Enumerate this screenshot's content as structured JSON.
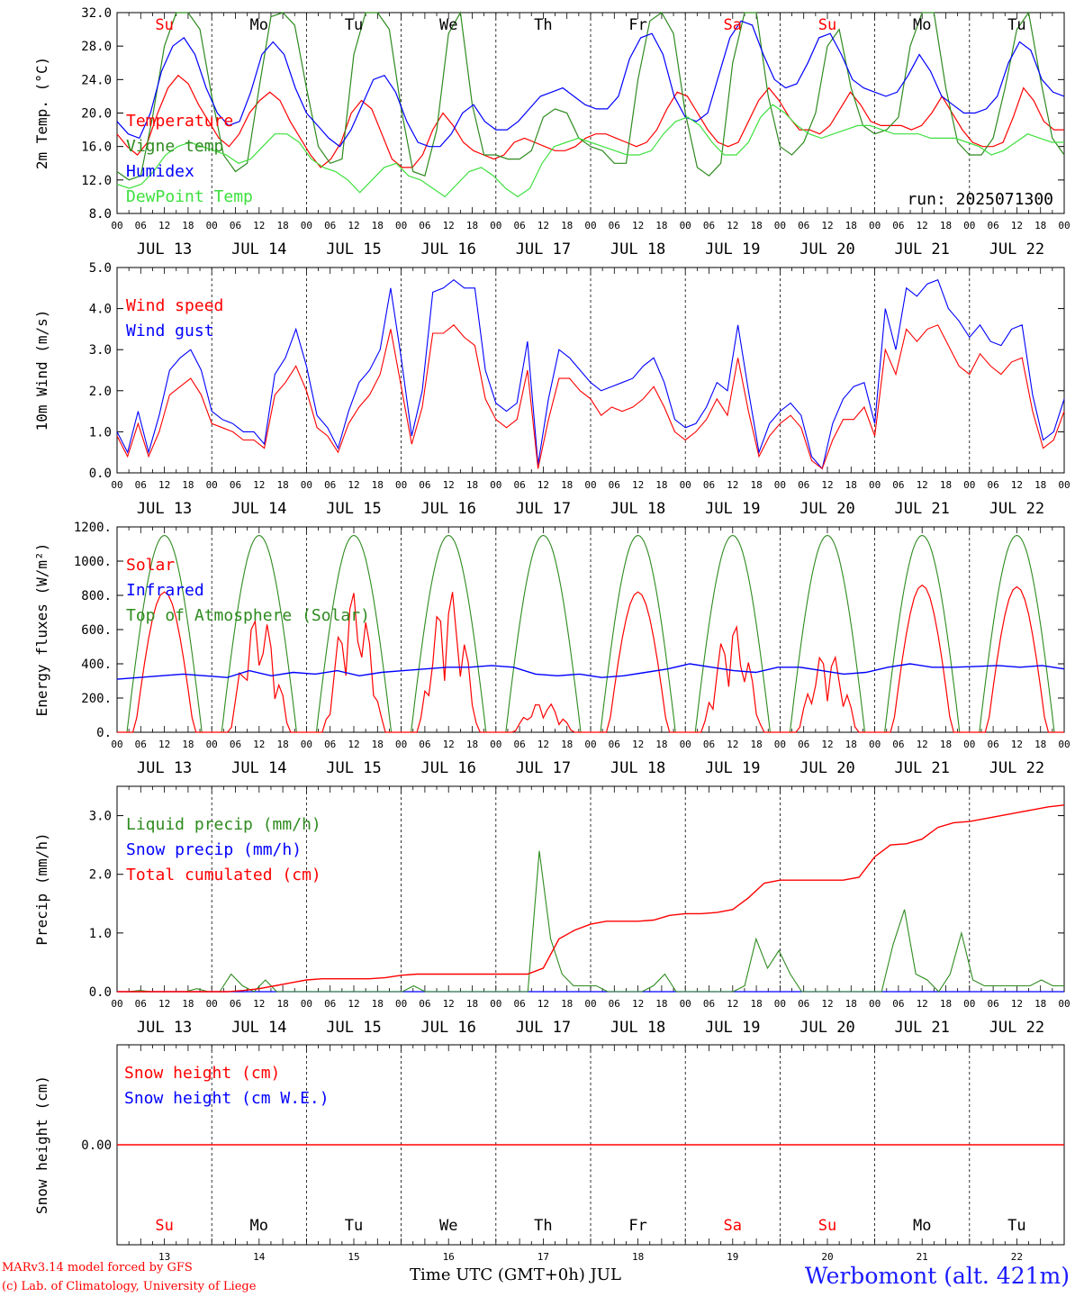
{
  "colors": {
    "red": "#ff0000",
    "blue": "#0000ff",
    "green": "#2e8b1f",
    "lightgreen": "#3ee03e",
    "black": "#000000"
  },
  "time_axis": {
    "hour_labels": [
      "00",
      "06",
      "12",
      "18"
    ],
    "dates": [
      "JUL 13",
      "JUL 14",
      "JUL 15",
      "JUL 16",
      "JUL 17",
      "JUL 18",
      "JUL 19",
      "JUL 20",
      "JUL 21",
      "JUL 22"
    ],
    "weekdays": [
      {
        "label": "Su",
        "color": "red"
      },
      {
        "label": "Mo",
        "color": "black"
      },
      {
        "label": "Tu",
        "color": "black"
      },
      {
        "label": "We",
        "color": "black"
      },
      {
        "label": "Th",
        "color": "black"
      },
      {
        "label": "Fr",
        "color": "black"
      },
      {
        "label": "Sa",
        "color": "red"
      },
      {
        "label": "Su",
        "color": "red"
      },
      {
        "label": "Mo",
        "color": "black"
      },
      {
        "label": "Tu",
        "color": "black"
      }
    ],
    "day_numbers": [
      "13",
      "14",
      "15",
      "16",
      "17",
      "18",
      "19",
      "20",
      "21",
      "22"
    ],
    "xlabel": "Time UTC (GMT+0h) JUL"
  },
  "footer": {
    "model": "MARv3.14 model forced by GFS",
    "lab": "(c) Lab. of Climatology, University of Liege",
    "station": "Werbomont (alt. 421m)"
  },
  "chart_data": [
    {
      "type": "line",
      "ylabel": "2m Temp. (°C)",
      "ylim": [
        8,
        32
      ],
      "yticks": [
        "8.0",
        "12.0",
        "16.0",
        "20.0",
        "24.0",
        "28.0",
        "32.0"
      ],
      "annotation": "run: 2025071300",
      "series": [
        {
          "name": "Temperature",
          "color": "red",
          "values": [
            17.5,
            16.0,
            15.0,
            16.5,
            20.0,
            23.0,
            24.5,
            23.5,
            21.0,
            19.0,
            17.0,
            16.0,
            17.5,
            20.0,
            21.5,
            22.5,
            21.5,
            19.0,
            17.0,
            15.0,
            13.5,
            14.5,
            16.5,
            20.0,
            21.5,
            20.5,
            17.5,
            14.5,
            13.5,
            13.5,
            15.0,
            18.0,
            20.0,
            18.5,
            16.5,
            15.5,
            15.0,
            14.5,
            15.0,
            16.5,
            17.0,
            16.5,
            16.0,
            15.5,
            15.5,
            16.0,
            17.0,
            17.5,
            17.5,
            17.0,
            16.5,
            16.0,
            16.5,
            18.0,
            20.5,
            22.5,
            22.0,
            20.0,
            18.0,
            16.5,
            16.0,
            16.5,
            19.0,
            21.5,
            23.0,
            21.5,
            19.5,
            18.0,
            18.0,
            17.5,
            18.5,
            20.5,
            22.5,
            21.0,
            19.0,
            18.5,
            18.5,
            18.5,
            18.0,
            18.5,
            20.0,
            22.0,
            20.0,
            18.0,
            16.5,
            16.0,
            16.0,
            16.5,
            19.5,
            23.0,
            21.5,
            19.0,
            18.0,
            18.0
          ]
        },
        {
          "name": "Vigne temp",
          "color": "green",
          "values": [
            13.0,
            12.0,
            12.5,
            19.5,
            28.0,
            32.5,
            33.0,
            30.0,
            22.0,
            15.0,
            13.0,
            14.0,
            23.0,
            31.5,
            33.0,
            30.5,
            23.0,
            16.0,
            14.0,
            14.5,
            27.0,
            34.0,
            34.0,
            30.0,
            20.5,
            13.0,
            12.5,
            18.0,
            29.5,
            33.5,
            21.0,
            15.0,
            15.0,
            14.5,
            14.5,
            15.5,
            19.5,
            20.5,
            20.0,
            17.0,
            16.0,
            15.5,
            14.0,
            14.0,
            24.0,
            31.0,
            33.0,
            29.5,
            20.0,
            13.5,
            12.5,
            14.0,
            26.0,
            32.5,
            32.0,
            22.0,
            16.0,
            15.0,
            16.5,
            20.0,
            28.0,
            30.0,
            23.0,
            18.5,
            17.5,
            18.0,
            19.5,
            28.0,
            34.0,
            32.0,
            23.0,
            16.5,
            15.0,
            15.0,
            17.0,
            23.0,
            30.0,
            33.0,
            24.0,
            17.0,
            15.0
          ]
        },
        {
          "name": "Humidex",
          "color": "blue",
          "values": [
            19.0,
            17.5,
            17.0,
            20.0,
            25.0,
            28.0,
            29.0,
            27.0,
            23.0,
            20.0,
            18.5,
            19.0,
            22.5,
            27.0,
            28.5,
            27.0,
            23.0,
            20.0,
            18.5,
            17.0,
            16.0,
            18.0,
            21.0,
            24.0,
            24.5,
            22.5,
            19.0,
            16.5,
            16.0,
            16.0,
            17.5,
            20.0,
            21.0,
            19.0,
            18.0,
            18.0,
            19.0,
            20.5,
            22.0,
            22.5,
            23.0,
            22.0,
            21.0,
            20.5,
            20.5,
            22.0,
            26.5,
            29.0,
            29.5,
            27.0,
            22.0,
            19.5,
            19.0,
            20.0,
            24.5,
            29.0,
            31.0,
            30.5,
            27.0,
            24.0,
            23.0,
            23.5,
            26.0,
            29.0,
            29.5,
            27.0,
            24.0,
            23.0,
            22.5,
            22.0,
            22.5,
            24.5,
            27.0,
            25.0,
            22.0,
            21.0,
            20.0,
            20.0,
            20.5,
            22.0,
            26.0,
            28.5,
            27.5,
            24.0,
            22.5,
            22.0
          ]
        },
        {
          "name": "DewPoint Temp",
          "color": "lightgreen",
          "values": [
            11.5,
            11.0,
            11.5,
            13.0,
            15.0,
            16.0,
            16.5,
            16.0,
            15.5,
            15.0,
            14.0,
            14.5,
            16.0,
            17.5,
            17.5,
            16.5,
            14.5,
            13.5,
            13.0,
            12.0,
            10.5,
            12.0,
            13.5,
            14.0,
            12.5,
            12.0,
            11.0,
            10.0,
            11.5,
            13.0,
            13.5,
            12.5,
            11.0,
            10.0,
            11.0,
            14.0,
            16.0,
            16.5,
            17.0,
            16.5,
            16.0,
            15.5,
            15.0,
            15.0,
            15.5,
            17.5,
            19.0,
            19.5,
            18.5,
            16.5,
            15.0,
            15.0,
            16.5,
            19.5,
            21.0,
            20.0,
            18.5,
            17.5,
            17.0,
            17.5,
            18.0,
            18.5,
            18.5,
            18.0,
            17.5,
            17.5,
            17.5,
            17.0,
            17.0,
            17.0,
            16.5,
            16.0,
            15.0,
            15.5,
            16.5,
            17.5,
            17.0,
            16.5,
            16.5
          ]
        }
      ]
    },
    {
      "type": "line",
      "ylabel": "10m Wind (m/s)",
      "ylim": [
        0,
        5
      ],
      "yticks": [
        "0.0",
        "1.0",
        "2.0",
        "3.0",
        "4.0",
        "5.0"
      ],
      "series": [
        {
          "name": "Wind speed",
          "color": "red",
          "values": [
            0.9,
            0.4,
            1.2,
            0.4,
            1.0,
            1.9,
            2.1,
            2.3,
            1.9,
            1.2,
            1.1,
            1.0,
            0.8,
            0.8,
            0.6,
            1.9,
            2.2,
            2.6,
            2.0,
            1.1,
            0.9,
            0.5,
            1.2,
            1.6,
            1.9,
            2.4,
            3.5,
            2.1,
            0.7,
            1.6,
            3.4,
            3.4,
            3.6,
            3.3,
            3.1,
            1.8,
            1.3,
            1.1,
            1.3,
            2.5,
            0.1,
            1.3,
            2.3,
            2.3,
            2.0,
            1.8,
            1.4,
            1.6,
            1.5,
            1.6,
            1.8,
            2.1,
            1.6,
            1.0,
            0.8,
            1.0,
            1.3,
            1.8,
            1.4,
            2.8,
            1.5,
            0.4,
            0.9,
            1.2,
            1.4,
            1.1,
            0.3,
            0.1,
            0.8,
            1.3,
            1.3,
            1.6,
            0.9,
            3.0,
            2.4,
            3.5,
            3.2,
            3.5,
            3.6,
            3.1,
            2.6,
            2.4,
            2.9,
            2.6,
            2.4,
            2.7,
            2.8,
            1.5,
            0.6,
            0.8,
            1.5
          ]
        },
        {
          "name": "Wind gust",
          "color": "blue",
          "values": [
            1.0,
            0.5,
            1.5,
            0.5,
            1.4,
            2.5,
            2.8,
            3.0,
            2.5,
            1.5,
            1.3,
            1.2,
            1.0,
            1.0,
            0.7,
            2.4,
            2.8,
            3.5,
            2.6,
            1.4,
            1.1,
            0.6,
            1.5,
            2.2,
            2.5,
            3.0,
            4.5,
            2.8,
            0.9,
            2.0,
            4.4,
            4.5,
            4.7,
            4.5,
            4.5,
            2.5,
            1.7,
            1.5,
            1.7,
            3.2,
            0.2,
            1.8,
            3.0,
            2.8,
            2.5,
            2.2,
            2.0,
            2.1,
            2.2,
            2.3,
            2.6,
            2.8,
            2.2,
            1.3,
            1.1,
            1.2,
            1.6,
            2.2,
            2.0,
            3.6,
            2.0,
            0.5,
            1.2,
            1.5,
            1.7,
            1.4,
            0.4,
            0.1,
            1.2,
            1.8,
            2.1,
            2.2,
            1.2,
            4.0,
            3.0,
            4.5,
            4.3,
            4.6,
            4.7,
            4.0,
            3.7,
            3.3,
            3.6,
            3.2,
            3.1,
            3.5,
            3.6,
            1.9,
            0.8,
            1.0,
            1.8
          ]
        }
      ]
    },
    {
      "type": "line",
      "ylabel": "Energy fluxes (W/m²)",
      "ylim": [
        0,
        1200
      ],
      "yticks": [
        "0.",
        "200.",
        "400.",
        "600.",
        "800.",
        "1000.",
        "1200."
      ],
      "series": [
        {
          "name": "Solar",
          "color": "red",
          "days": [
            {
              "peak": 820,
              "noise": 0
            },
            {
              "peak": 700,
              "noise": 1
            },
            {
              "peak": 830,
              "noise": 1
            },
            {
              "peak": 840,
              "noise": 1
            },
            {
              "peak": 180,
              "noise": 1
            },
            {
              "peak": 820,
              "noise": 0
            },
            {
              "peak": 640,
              "noise": 1
            },
            {
              "peak": 480,
              "noise": 1
            },
            {
              "peak": 860,
              "noise": 0
            },
            {
              "peak": 850,
              "noise": 0
            }
          ]
        },
        {
          "name": "Infrared",
          "color": "blue",
          "values": [
            310,
            320,
            330,
            340,
            330,
            320,
            360,
            330,
            350,
            340,
            360,
            330,
            350,
            360,
            370,
            380,
            380,
            390,
            380,
            340,
            330,
            340,
            320,
            330,
            350,
            370,
            400,
            380,
            360,
            350,
            380,
            380,
            360,
            340,
            350,
            380,
            400,
            380,
            380,
            385,
            390,
            380,
            390,
            370
          ]
        },
        {
          "name": "Top of Atmosphere (Solar)",
          "color": "green",
          "days": [
            {
              "peak": 1150
            }
          ]
        }
      ]
    },
    {
      "type": "line",
      "ylabel": "Precip (mm/h)",
      "ylim": [
        0,
        3.5
      ],
      "yticks": [
        "0.0",
        "1.0",
        "2.0",
        "3.0"
      ],
      "series": [
        {
          "name": "Liquid precip (mm/h)",
          "color": "green",
          "values": [
            0,
            0,
            0.02,
            0,
            0,
            0,
            0,
            0.05,
            0,
            0,
            0.3,
            0.1,
            0,
            0.2,
            0,
            0,
            0,
            0,
            0,
            0,
            0,
            0,
            0,
            0,
            0,
            0,
            0.1,
            0,
            0,
            0,
            0,
            0,
            0,
            0,
            0,
            0,
            0,
            2.4,
            0.9,
            0.3,
            0.1,
            0.1,
            0.1,
            0,
            0,
            0,
            0,
            0.1,
            0.3,
            0,
            0,
            0,
            0,
            0,
            0,
            0.1,
            0.9,
            0.4,
            0.7,
            0.3,
            0,
            0,
            0,
            0,
            0,
            0,
            0,
            0,
            0.8,
            1.4,
            0.3,
            0.2,
            0,
            0.3,
            1.0,
            0.2,
            0.1,
            0.1,
            0.1,
            0.1,
            0.1,
            0.2,
            0.1,
            0.1
          ]
        },
        {
          "name": "Snow precip (mm/h)",
          "color": "blue",
          "values": [
            0,
            0,
            0,
            0,
            0,
            0,
            0,
            0,
            0,
            0,
            0,
            0,
            0,
            0,
            0,
            0,
            0,
            0,
            0,
            0,
            0,
            0,
            0,
            0,
            0,
            0,
            0,
            0,
            0,
            0,
            0,
            0,
            0,
            0,
            0,
            0,
            0,
            0,
            0,
            0,
            0,
            0,
            0,
            0,
            0,
            0,
            0,
            0,
            0,
            0,
            0,
            0,
            0,
            0,
            0,
            0,
            0,
            0,
            0,
            0,
            0,
            0,
            0,
            0,
            0,
            0,
            0,
            0,
            0,
            0,
            0,
            0,
            0,
            0,
            0,
            0,
            0,
            0,
            0,
            0,
            0,
            0,
            0,
            0
          ]
        },
        {
          "name": "Total cumulated (cm)",
          "color": "red",
          "values": [
            0,
            0,
            0,
            0,
            0,
            0,
            0,
            0,
            0.02,
            0.05,
            0.1,
            0.15,
            0.2,
            0.22,
            0.22,
            0.22,
            0.22,
            0.24,
            0.28,
            0.3,
            0.3,
            0.3,
            0.3,
            0.3,
            0.3,
            0.3,
            0.3,
            0.4,
            0.9,
            1.05,
            1.15,
            1.2,
            1.2,
            1.2,
            1.22,
            1.3,
            1.33,
            1.33,
            1.35,
            1.4,
            1.6,
            1.85,
            1.9,
            1.9,
            1.9,
            1.9,
            1.9,
            1.95,
            2.3,
            2.5,
            2.52,
            2.6,
            2.8,
            2.88,
            2.9,
            2.95,
            3.0,
            3.05,
            3.1,
            3.15,
            3.18
          ]
        }
      ]
    },
    {
      "type": "line",
      "ylabel": "Snow height (cm)",
      "yticks": [
        "0.00"
      ],
      "series": [
        {
          "name": "Snow height (cm)",
          "color": "red",
          "values": [
            0,
            0
          ]
        },
        {
          "name": "Snow height (cm W.E.)",
          "color": "blue",
          "values": []
        }
      ]
    }
  ]
}
